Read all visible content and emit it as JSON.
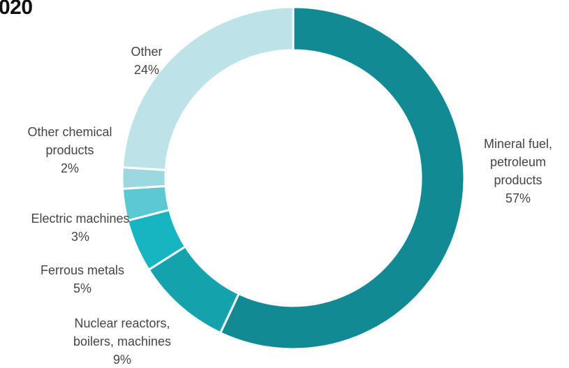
{
  "page": {
    "title": "020"
  },
  "chart_data": {
    "type": "pie",
    "donut": true,
    "start_angle_deg": 0,
    "direction": "clockwise",
    "slices": [
      {
        "name": "Mineral fuel, petroleum products",
        "label_lines": [
          "Mineral fuel,",
          "petroleum",
          "products"
        ],
        "percent_label": "57%",
        "value": 57,
        "color": "#128a94"
      },
      {
        "name": "Nuclear reactors, boilers, machines",
        "label_lines": [
          "Nuclear reactors,",
          "boilers, machines"
        ],
        "percent_label": "9%",
        "value": 9,
        "color": "#14a2ad"
      },
      {
        "name": "Ferrous metals",
        "label_lines": [
          "Ferrous metals"
        ],
        "percent_label": "5%",
        "value": 5,
        "color": "#17b5c2"
      },
      {
        "name": "Electric machines",
        "label_lines": [
          "Electric machines"
        ],
        "percent_label": "3%",
        "value": 3,
        "color": "#5cc8d4"
      },
      {
        "name": "Other chemical products",
        "label_lines": [
          "Other chemical",
          "products"
        ],
        "percent_label": "2%",
        "value": 2,
        "color": "#9bd8e0"
      },
      {
        "name": "Other",
        "label_lines": [
          "Other"
        ],
        "percent_label": "24%",
        "value": 24,
        "color": "#bde2e8"
      }
    ]
  }
}
